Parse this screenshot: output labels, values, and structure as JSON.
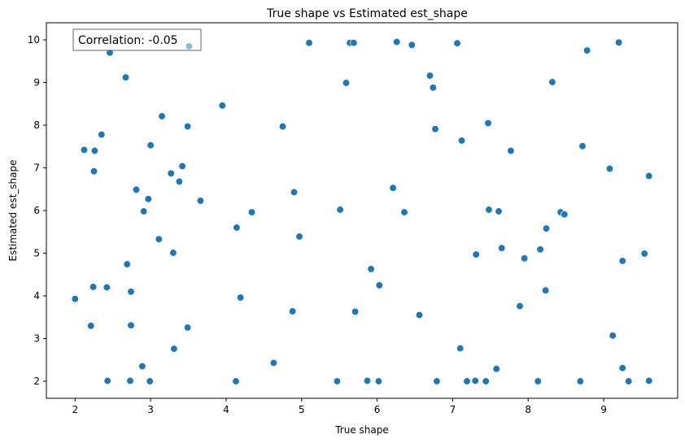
{
  "chart_data": {
    "type": "scatter",
    "title": "True shape vs Estimated est_shape",
    "xlabel": "True shape",
    "ylabel": "Estimated est_shape",
    "xlim": [
      1.62,
      9.98
    ],
    "ylim": [
      1.6,
      10.4
    ],
    "xticks": [
      2,
      3,
      4,
      5,
      6,
      7,
      8,
      9
    ],
    "yticks": [
      2,
      3,
      4,
      5,
      6,
      7,
      8,
      9,
      10
    ],
    "grid": false,
    "legend": "none",
    "annotation": "Correlation: -0.05",
    "point_color": "#1f77b4",
    "points": [
      [
        2.46,
        9.7
      ],
      [
        2.67,
        9.12
      ],
      [
        2.12,
        7.42
      ],
      [
        2.26,
        7.4
      ],
      [
        2.35,
        7.78
      ],
      [
        2.25,
        6.92
      ],
      [
        2.81,
        6.49
      ],
      [
        2.97,
        6.27
      ],
      [
        2.91,
        5.98
      ],
      [
        2.69,
        4.74
      ],
      [
        2.24,
        4.21
      ],
      [
        2.42,
        4.2
      ],
      [
        2.74,
        4.1
      ],
      [
        2.0,
        3.93
      ],
      [
        2.21,
        3.3
      ],
      [
        2.74,
        3.31
      ],
      [
        2.89,
        2.35
      ],
      [
        2.43,
        2.01
      ],
      [
        2.73,
        2.01
      ],
      [
        2.99,
        2.0
      ],
      [
        3.0,
        7.53
      ],
      [
        3.15,
        8.21
      ],
      [
        3.49,
        7.97
      ],
      [
        3.27,
        6.87
      ],
      [
        3.42,
        7.04
      ],
      [
        3.38,
        6.68
      ],
      [
        3.11,
        5.33
      ],
      [
        3.3,
        5.01
      ],
      [
        3.49,
        3.26
      ],
      [
        3.31,
        2.76
      ],
      [
        3.51,
        9.85
      ],
      [
        3.66,
        6.23
      ],
      [
        3.95,
        8.46
      ],
      [
        4.14,
        5.6
      ],
      [
        4.19,
        3.96
      ],
      [
        4.34,
        5.96
      ],
      [
        4.13,
        2.0
      ],
      [
        4.63,
        2.43
      ],
      [
        4.75,
        7.97
      ],
      [
        4.9,
        6.43
      ],
      [
        4.97,
        5.39
      ],
      [
        4.88,
        3.64
      ],
      [
        5.1,
        9.93
      ],
      [
        5.64,
        9.93
      ],
      [
        5.69,
        9.93
      ],
      [
        5.59,
        8.99
      ],
      [
        5.51,
        6.02
      ],
      [
        5.47,
        2.0
      ],
      [
        5.71,
        3.63
      ],
      [
        5.92,
        4.63
      ],
      [
        6.03,
        4.25
      ],
      [
        5.87,
        2.01
      ],
      [
        6.02,
        2.0
      ],
      [
        6.26,
        9.95
      ],
      [
        6.46,
        9.88
      ],
      [
        6.21,
        6.53
      ],
      [
        6.36,
        5.96
      ],
      [
        6.56,
        3.55
      ],
      [
        6.7,
        9.16
      ],
      [
        6.74,
        8.88
      ],
      [
        6.77,
        7.91
      ],
      [
        6.79,
        2.0
      ],
      [
        7.06,
        9.92
      ],
      [
        7.12,
        7.64
      ],
      [
        7.1,
        2.77
      ],
      [
        7.19,
        2.0
      ],
      [
        7.3,
        2.01
      ],
      [
        7.31,
        4.97
      ],
      [
        7.44,
        2.0
      ],
      [
        7.47,
        8.05
      ],
      [
        7.48,
        6.02
      ],
      [
        7.61,
        5.98
      ],
      [
        7.65,
        5.12
      ],
      [
        7.58,
        2.29
      ],
      [
        7.77,
        7.4
      ],
      [
        7.89,
        3.76
      ],
      [
        7.95,
        4.88
      ],
      [
        8.16,
        5.09
      ],
      [
        8.23,
        4.13
      ],
      [
        8.24,
        5.58
      ],
      [
        8.13,
        2.0
      ],
      [
        8.32,
        9.01
      ],
      [
        8.43,
        5.96
      ],
      [
        8.48,
        5.91
      ],
      [
        8.72,
        7.51
      ],
      [
        8.78,
        9.75
      ],
      [
        8.69,
        2.0
      ],
      [
        9.08,
        6.98
      ],
      [
        9.12,
        3.07
      ],
      [
        9.2,
        9.94
      ],
      [
        9.25,
        4.82
      ],
      [
        9.25,
        2.31
      ],
      [
        9.33,
        2.0
      ],
      [
        9.54,
        4.99
      ],
      [
        9.6,
        6.81
      ],
      [
        9.6,
        2.01
      ]
    ]
  }
}
